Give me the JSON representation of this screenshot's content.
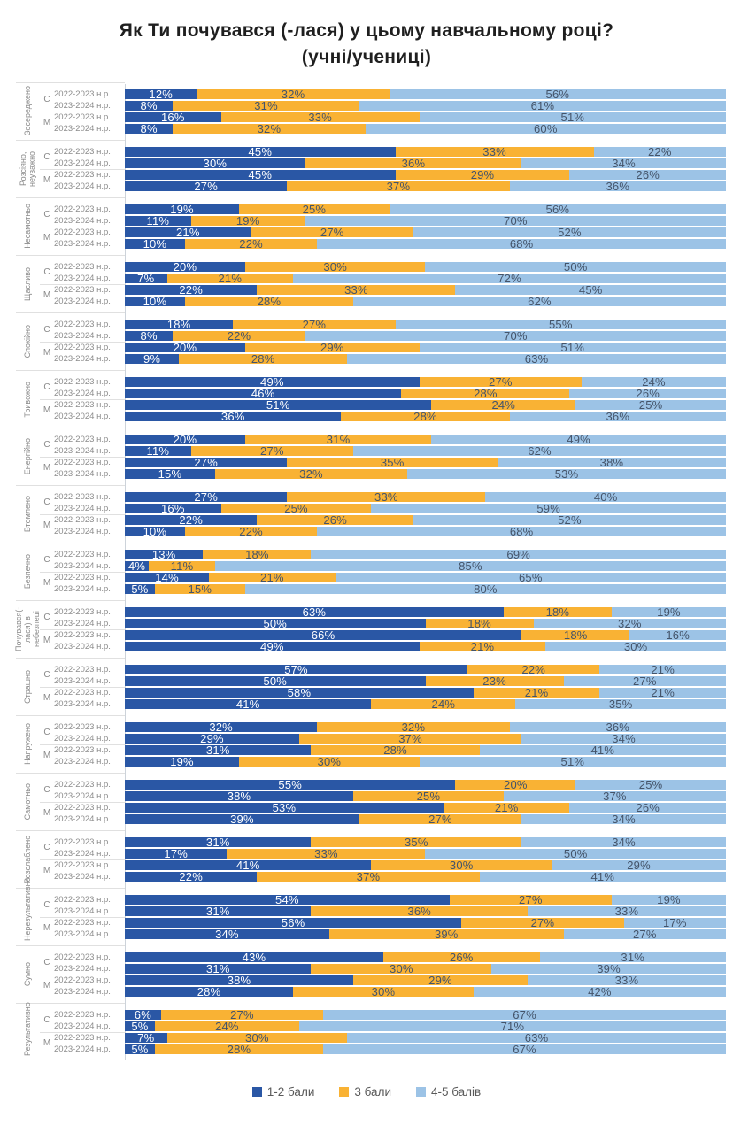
{
  "title": {
    "line1": "Як Ти почувався (-лася) у цьому навчальному році?",
    "line2": "(учні/учениці)"
  },
  "colors": {
    "score_1_2": "#2A57A5",
    "score_3": "#F9B234",
    "score_4_5": "#9CC3E6",
    "value_label_dark": "#44546A",
    "value_label_light": "#FFFFFF",
    "axis_text": "#8A8A8A"
  },
  "legend": [
    {
      "label": "1-2 бали",
      "color": "#2A57A5"
    },
    {
      "label": "3 бали",
      "color": "#F9B234"
    },
    {
      "label": "4-5 балів",
      "color": "#9CC3E6"
    }
  ],
  "chart_data": {
    "type": "bar",
    "variant": "horizontal-stacked-100pct",
    "unit": "%",
    "series_names": [
      "1-2 бали",
      "3 бали",
      "4-5 балів"
    ],
    "series_colors": [
      "#2A57A5",
      "#F9B234",
      "#9CC3E6"
    ],
    "subgroups": [
      "С",
      "М"
    ],
    "years": [
      "2022-2023 н.р.",
      "2023-2024 н.р."
    ],
    "row_order_note": "rows per group: С 2022-2023, С 2023-2024, М 2022-2023, М 2023-2024; values = [1-2 бали, 3 бали, 4-5 балів]",
    "groups": [
      {
        "label": "Зосереджено",
        "values": [
          [
            12,
            32,
            56
          ],
          [
            8,
            31,
            61
          ],
          [
            16,
            33,
            51
          ],
          [
            8,
            32,
            60
          ]
        ]
      },
      {
        "label": "Розсіяно, неуважно",
        "values": [
          [
            45,
            33,
            22
          ],
          [
            30,
            36,
            34
          ],
          [
            45,
            29,
            26
          ],
          [
            27,
            37,
            36
          ]
        ]
      },
      {
        "label": "Несамотньо",
        "values": [
          [
            19,
            25,
            56
          ],
          [
            11,
            19,
            70
          ],
          [
            21,
            27,
            52
          ],
          [
            10,
            22,
            68
          ]
        ]
      },
      {
        "label": "Щасливо",
        "values": [
          [
            20,
            30,
            50
          ],
          [
            7,
            21,
            72
          ],
          [
            22,
            33,
            45
          ],
          [
            10,
            28,
            62
          ]
        ]
      },
      {
        "label": "Спокійно",
        "values": [
          [
            18,
            27,
            55
          ],
          [
            8,
            22,
            70
          ],
          [
            20,
            29,
            51
          ],
          [
            9,
            28,
            63
          ]
        ]
      },
      {
        "label": "Тривожно",
        "values": [
          [
            49,
            27,
            24
          ],
          [
            46,
            28,
            26
          ],
          [
            51,
            24,
            25
          ],
          [
            36,
            28,
            36
          ]
        ]
      },
      {
        "label": "Енергійно",
        "values": [
          [
            20,
            31,
            49
          ],
          [
            11,
            27,
            62
          ],
          [
            27,
            35,
            38
          ],
          [
            15,
            32,
            53
          ]
        ]
      },
      {
        "label": "Втомлено",
        "values": [
          [
            27,
            33,
            40
          ],
          [
            16,
            25,
            59
          ],
          [
            22,
            26,
            52
          ],
          [
            10,
            22,
            68
          ]
        ]
      },
      {
        "label": "Безпечно",
        "values": [
          [
            13,
            18,
            69
          ],
          [
            4,
            11,
            85
          ],
          [
            14,
            21,
            65
          ],
          [
            5,
            15,
            80
          ]
        ]
      },
      {
        "label": "Почувався(-лася) в небезпеці",
        "values": [
          [
            63,
            18,
            19
          ],
          [
            50,
            18,
            32
          ],
          [
            66,
            18,
            16
          ],
          [
            49,
            21,
            30
          ]
        ]
      },
      {
        "label": "Страшно",
        "values": [
          [
            57,
            22,
            21
          ],
          [
            50,
            23,
            27
          ],
          [
            58,
            21,
            21
          ],
          [
            41,
            24,
            35
          ]
        ]
      },
      {
        "label": "Напружено",
        "values": [
          [
            32,
            32,
            36
          ],
          [
            29,
            37,
            34
          ],
          [
            31,
            28,
            41
          ],
          [
            19,
            30,
            51
          ]
        ]
      },
      {
        "label": "Самотньо",
        "values": [
          [
            55,
            20,
            25
          ],
          [
            38,
            25,
            37
          ],
          [
            53,
            21,
            26
          ],
          [
            39,
            27,
            34
          ]
        ]
      },
      {
        "label": "Розслаблено",
        "values": [
          [
            31,
            35,
            34
          ],
          [
            17,
            33,
            50
          ],
          [
            41,
            30,
            29
          ],
          [
            22,
            37,
            41
          ]
        ]
      },
      {
        "label": "Нерезультативно",
        "values": [
          [
            54,
            27,
            19
          ],
          [
            31,
            36,
            33
          ],
          [
            56,
            27,
            17
          ],
          [
            34,
            39,
            27
          ]
        ]
      },
      {
        "label": "Сумно",
        "values": [
          [
            43,
            26,
            31
          ],
          [
            31,
            30,
            39
          ],
          [
            38,
            29,
            33
          ],
          [
            28,
            30,
            42
          ]
        ]
      },
      {
        "label": "Результативно",
        "values": [
          [
            6,
            27,
            67
          ],
          [
            5,
            24,
            71
          ],
          [
            7,
            30,
            63
          ],
          [
            5,
            28,
            67
          ]
        ]
      }
    ]
  }
}
